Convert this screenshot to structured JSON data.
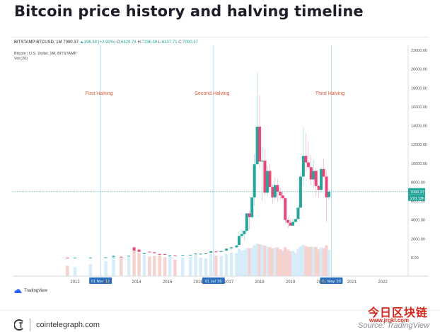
{
  "page": {
    "title": "Bitcoin price history and halving timeline",
    "source": "Source: TradingView",
    "brand": "cointelegraph.com",
    "watermark": "今日区块链",
    "watermark_url": "www.jrqkl.com"
  },
  "header": {
    "symbol": "BITSTAMP:BTCUSD, 1M",
    "last": "7000.37",
    "change": "▲198.38 (+2.92%)",
    "open_label": "O:",
    "open": "6428.74",
    "high_label": "H:",
    "high": "7236.39",
    "low_label": "L:",
    "low": "6137.71",
    "close_label": "C:",
    "close": "7000.37",
    "series_name": "Bitcoin / U.S. Dollar, 1M, BITSTAMP",
    "volume_name": "Vol (20)",
    "tradingview": "TradingView"
  },
  "colors": {
    "up": "#26a69a",
    "down": "#e9467a",
    "halving_line": "#a9d6ee",
    "price_line": "#26a69a",
    "axis_text": "#555555",
    "halving_label": "#e05a3a",
    "volume_up": "#d6ecf8",
    "volume_down": "#f5d2cf",
    "date_badge": "#2a6fbd",
    "price_badge": "#26a69a"
  },
  "chart_data": {
    "type": "candlestick",
    "title": "Bitcoin / U.S. Dollar, 1M, BITSTAMP",
    "ylim": [
      -2000,
      22000
    ],
    "y_ticks": [
      "22000.00",
      "20000.00",
      "18000.00",
      "16000.00",
      "14000.00",
      "12000.00",
      "10000.00",
      "8000.00",
      "6000.00",
      "4000.00",
      "2000.00",
      "0.00"
    ],
    "x_ticks": [
      "2012",
      "2013",
      "2014",
      "2015",
      "2016",
      "2017",
      "2018",
      "2019",
      "2020",
      "2021",
      "2022"
    ],
    "x_years": [
      2012,
      2013,
      2014,
      2015,
      2016,
      2017,
      2018,
      2019,
      2020,
      2021,
      2022
    ],
    "current_price": 7000.37,
    "current_price_label": "7000.37",
    "countdown_label": "27d 13h",
    "halvings": [
      {
        "label": "First Halving",
        "date": "01 Nov '12",
        "x": 2012.83
      },
      {
        "label": "Second Halving",
        "date": "01 Jul '16",
        "x": 2016.5
      },
      {
        "label": "Third Halving",
        "date": "01 May '20",
        "x": 2020.33
      }
    ],
    "candles": [
      {
        "x": 2011.75,
        "o": 5,
        "h": 7,
        "l": 2,
        "c": 3
      },
      {
        "x": 2012.0,
        "o": 5,
        "h": 7,
        "l": 4,
        "c": 6
      },
      {
        "x": 2012.5,
        "o": 7,
        "h": 15,
        "l": 6,
        "c": 12
      },
      {
        "x": 2013.0,
        "o": 13,
        "h": 35,
        "l": 13,
        "c": 33
      },
      {
        "x": 2013.25,
        "o": 90,
        "h": 260,
        "l": 50,
        "c": 140
      },
      {
        "x": 2013.5,
        "o": 100,
        "h": 130,
        "l": 65,
        "c": 90
      },
      {
        "x": 2013.75,
        "o": 130,
        "h": 220,
        "l": 120,
        "c": 200
      },
      {
        "x": 2013.92,
        "o": 1100,
        "h": 1160,
        "l": 500,
        "c": 750
      },
      {
        "x": 2014.08,
        "o": 850,
        "h": 1000,
        "l": 600,
        "c": 620
      },
      {
        "x": 2014.25,
        "o": 450,
        "h": 550,
        "l": 350,
        "c": 450
      },
      {
        "x": 2014.42,
        "o": 640,
        "h": 680,
        "l": 560,
        "c": 600
      },
      {
        "x": 2014.58,
        "o": 580,
        "h": 600,
        "l": 460,
        "c": 480
      },
      {
        "x": 2014.75,
        "o": 390,
        "h": 450,
        "l": 280,
        "c": 340
      },
      {
        "x": 2014.92,
        "o": 380,
        "h": 390,
        "l": 300,
        "c": 320
      },
      {
        "x": 2015.08,
        "o": 230,
        "h": 300,
        "l": 160,
        "c": 250
      },
      {
        "x": 2015.25,
        "o": 240,
        "h": 250,
        "l": 210,
        "c": 230
      },
      {
        "x": 2015.5,
        "o": 250,
        "h": 310,
        "l": 230,
        "c": 280
      },
      {
        "x": 2015.75,
        "o": 240,
        "h": 330,
        "l": 230,
        "c": 310
      },
      {
        "x": 2015.92,
        "o": 370,
        "h": 500,
        "l": 310,
        "c": 430
      },
      {
        "x": 2016.08,
        "o": 380,
        "h": 440,
        "l": 360,
        "c": 420
      },
      {
        "x": 2016.25,
        "o": 420,
        "h": 460,
        "l": 400,
        "c": 450
      },
      {
        "x": 2016.42,
        "o": 530,
        "h": 780,
        "l": 530,
        "c": 670
      },
      {
        "x": 2016.58,
        "o": 650,
        "h": 680,
        "l": 520,
        "c": 600
      },
      {
        "x": 2016.75,
        "o": 610,
        "h": 740,
        "l": 600,
        "c": 700
      },
      {
        "x": 2016.92,
        "o": 750,
        "h": 980,
        "l": 730,
        "c": 960
      },
      {
        "x": 2017.08,
        "o": 1000,
        "h": 1200,
        "l": 750,
        "c": 1100
      },
      {
        "x": 2017.25,
        "o": 1100,
        "h": 1350,
        "l": 1000,
        "c": 1300
      },
      {
        "x": 2017.33,
        "o": 1350,
        "h": 2800,
        "l": 1350,
        "c": 2300
      },
      {
        "x": 2017.42,
        "o": 2300,
        "h": 3000,
        "l": 2100,
        "c": 2500
      },
      {
        "x": 2017.5,
        "o": 2500,
        "h": 2900,
        "l": 1800,
        "c": 2850
      },
      {
        "x": 2017.58,
        "o": 2850,
        "h": 4700,
        "l": 2700,
        "c": 4700
      },
      {
        "x": 2017.67,
        "o": 4700,
        "h": 5000,
        "l": 3000,
        "c": 4300
      },
      {
        "x": 2017.75,
        "o": 4300,
        "h": 6400,
        "l": 4100,
        "c": 6400
      },
      {
        "x": 2017.83,
        "o": 6400,
        "h": 11000,
        "l": 5500,
        "c": 9900
      },
      {
        "x": 2017.92,
        "o": 9900,
        "h": 19600,
        "l": 9900,
        "c": 13900
      },
      {
        "x": 2018.0,
        "o": 13900,
        "h": 17200,
        "l": 9500,
        "c": 10200
      },
      {
        "x": 2018.08,
        "o": 10200,
        "h": 11700,
        "l": 6000,
        "c": 10300
      },
      {
        "x": 2018.17,
        "o": 10300,
        "h": 11500,
        "l": 6600,
        "c": 6900
      },
      {
        "x": 2018.25,
        "o": 6900,
        "h": 9700,
        "l": 6500,
        "c": 9200
      },
      {
        "x": 2018.33,
        "o": 9200,
        "h": 9900,
        "l": 7100,
        "c": 7500
      },
      {
        "x": 2018.42,
        "o": 7500,
        "h": 7700,
        "l": 5800,
        "c": 6400
      },
      {
        "x": 2018.5,
        "o": 6400,
        "h": 8500,
        "l": 6100,
        "c": 7700
      },
      {
        "x": 2018.58,
        "o": 7700,
        "h": 8400,
        "l": 5900,
        "c": 7000
      },
      {
        "x": 2018.67,
        "o": 7000,
        "h": 7400,
        "l": 6100,
        "c": 6600
      },
      {
        "x": 2018.75,
        "o": 6600,
        "h": 7000,
        "l": 6200,
        "c": 6300
      },
      {
        "x": 2018.83,
        "o": 6300,
        "h": 6500,
        "l": 3700,
        "c": 4000
      },
      {
        "x": 2018.92,
        "o": 4000,
        "h": 4300,
        "l": 3100,
        "c": 3700
      },
      {
        "x": 2019.0,
        "o": 3700,
        "h": 4100,
        "l": 3400,
        "c": 3400
      },
      {
        "x": 2019.08,
        "o": 3400,
        "h": 4200,
        "l": 3400,
        "c": 3800
      },
      {
        "x": 2019.17,
        "o": 3800,
        "h": 4100,
        "l": 3700,
        "c": 4100
      },
      {
        "x": 2019.25,
        "o": 4100,
        "h": 5600,
        "l": 4000,
        "c": 5300
      },
      {
        "x": 2019.33,
        "o": 5300,
        "h": 9000,
        "l": 5300,
        "c": 8600
      },
      {
        "x": 2019.42,
        "o": 8600,
        "h": 13800,
        "l": 7600,
        "c": 10800
      },
      {
        "x": 2019.5,
        "o": 10800,
        "h": 13200,
        "l": 9100,
        "c": 10100
      },
      {
        "x": 2019.58,
        "o": 10100,
        "h": 12300,
        "l": 9400,
        "c": 9600
      },
      {
        "x": 2019.67,
        "o": 9600,
        "h": 10900,
        "l": 7700,
        "c": 8300
      },
      {
        "x": 2019.75,
        "o": 8300,
        "h": 10400,
        "l": 7400,
        "c": 9200
      },
      {
        "x": 2019.83,
        "o": 9200,
        "h": 9500,
        "l": 6500,
        "c": 7600
      },
      {
        "x": 2019.92,
        "o": 7600,
        "h": 7700,
        "l": 6400,
        "c": 7200
      },
      {
        "x": 2020.0,
        "o": 7200,
        "h": 9600,
        "l": 6900,
        "c": 9400
      },
      {
        "x": 2020.08,
        "o": 9400,
        "h": 10500,
        "l": 8500,
        "c": 8600
      },
      {
        "x": 2020.17,
        "o": 8600,
        "h": 9200,
        "l": 3800,
        "c": 6400
      },
      {
        "x": 2020.25,
        "o": 6428.74,
        "h": 7236.39,
        "l": 6137.71,
        "c": 7000.37
      }
    ],
    "volume_ylim": [
      0,
      3000
    ]
  }
}
